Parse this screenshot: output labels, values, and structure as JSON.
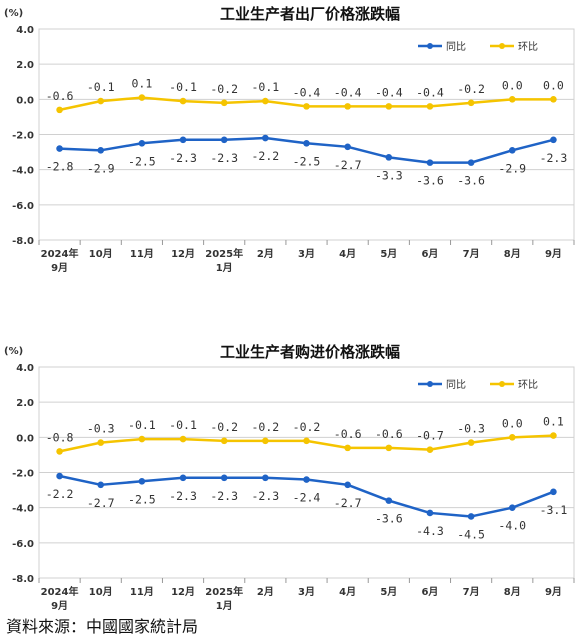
{
  "source": "資料來源：中國國家統計局",
  "colors": {
    "yoy": "#1f63c6",
    "mom": "#f5c400",
    "grid": "#d0d0d0",
    "text": "#333333"
  },
  "chart_data": [
    {
      "type": "line",
      "title": "工业生产者出厂价格涨跌幅",
      "unit": "(%)",
      "ylim": [
        -8.0,
        4.0
      ],
      "yticks": [
        "4.0",
        "2.0",
        "0.0",
        "-2.0",
        "-4.0",
        "-6.0",
        "-8.0"
      ],
      "ytick_values": [
        4,
        2,
        0,
        -2,
        -4,
        -6,
        -8
      ],
      "categories": [
        "2024年 9月",
        "10月",
        "11月",
        "12月",
        "2025年 1月",
        "2月",
        "3月",
        "4月",
        "5月",
        "6月",
        "7月",
        "8月",
        "9月"
      ],
      "cat_lines": [
        [
          "2024年",
          "9月"
        ],
        [
          "10月"
        ],
        [
          "11月"
        ],
        [
          "12月"
        ],
        [
          "2025年",
          "1月"
        ],
        [
          "2月"
        ],
        [
          "3月"
        ],
        [
          "4月"
        ],
        [
          "5月"
        ],
        [
          "6月"
        ],
        [
          "7月"
        ],
        [
          "8月"
        ],
        [
          "9月"
        ]
      ],
      "legend": {
        "placement": "top-right"
      },
      "grid": true,
      "series": [
        {
          "name": "同比",
          "key": "yoy",
          "values": [
            -2.8,
            -2.9,
            -2.5,
            -2.3,
            -2.3,
            -2.2,
            -2.5,
            -2.7,
            -3.3,
            -3.6,
            -3.6,
            -2.9,
            -2.3
          ],
          "labels": [
            "-2.8",
            "-2.9",
            "-2.5",
            "-2.3",
            "-2.3",
            "-2.2",
            "-2.5",
            "-2.7",
            "-3.3",
            "-3.6",
            "-3.6",
            "-2.9",
            "-2.3"
          ]
        },
        {
          "name": "环比",
          "key": "mom",
          "values": [
            -0.6,
            -0.1,
            0.1,
            -0.1,
            -0.2,
            -0.1,
            -0.4,
            -0.4,
            -0.4,
            -0.4,
            -0.2,
            0.0,
            0.0
          ],
          "labels": [
            "-0.6",
            "-0.1",
            "0.1",
            "-0.1",
            "-0.2",
            "-0.1",
            "-0.4",
            "-0.4",
            "-0.4",
            "-0.4",
            "-0.2",
            "0.0",
            "0.0"
          ]
        }
      ]
    },
    {
      "type": "line",
      "title": "工业生产者购进价格涨跌幅",
      "unit": "(%)",
      "ylim": [
        -8.0,
        4.0
      ],
      "yticks": [
        "4.0",
        "2.0",
        "0.0",
        "-2.0",
        "-4.0",
        "-6.0",
        "-8.0"
      ],
      "ytick_values": [
        4,
        2,
        0,
        -2,
        -4,
        -6,
        -8
      ],
      "categories": [
        "2024年 9月",
        "10月",
        "11月",
        "12月",
        "2025年 1月",
        "2月",
        "3月",
        "4月",
        "5月",
        "6月",
        "7月",
        "8月",
        "9月"
      ],
      "cat_lines": [
        [
          "2024年",
          "9月"
        ],
        [
          "10月"
        ],
        [
          "11月"
        ],
        [
          "12月"
        ],
        [
          "2025年",
          "1月"
        ],
        [
          "2月"
        ],
        [
          "3月"
        ],
        [
          "4月"
        ],
        [
          "5月"
        ],
        [
          "6月"
        ],
        [
          "7月"
        ],
        [
          "8月"
        ],
        [
          "9月"
        ]
      ],
      "legend": {
        "placement": "top-right"
      },
      "grid": true,
      "series": [
        {
          "name": "同比",
          "key": "yoy",
          "values": [
            -2.2,
            -2.7,
            -2.5,
            -2.3,
            -2.3,
            -2.3,
            -2.4,
            -2.7,
            -3.6,
            -4.3,
            -4.5,
            -4.0,
            -3.1
          ],
          "labels": [
            "-2.2",
            "-2.7",
            "-2.5",
            "-2.3",
            "-2.3",
            "-2.3",
            "-2.4",
            "-2.7",
            "-3.6",
            "-4.3",
            "-4.5",
            "-4.0",
            "-3.1"
          ]
        },
        {
          "name": "环比",
          "key": "mom",
          "values": [
            -0.8,
            -0.3,
            -0.1,
            -0.1,
            -0.2,
            -0.2,
            -0.2,
            -0.6,
            -0.6,
            -0.7,
            -0.3,
            0.0,
            0.1
          ],
          "labels": [
            "-0.8",
            "-0.3",
            "-0.1",
            "-0.1",
            "-0.2",
            "-0.2",
            "-0.2",
            "-0.6",
            "-0.6",
            "-0.7",
            "-0.3",
            "0.0",
            "0.1"
          ]
        }
      ]
    }
  ]
}
